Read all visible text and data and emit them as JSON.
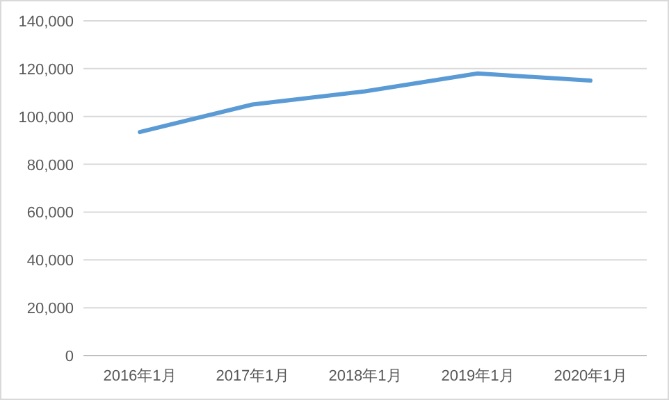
{
  "chart_data": {
    "type": "line",
    "categories": [
      "2016年1月",
      "2017年1月",
      "2018年1月",
      "2019年1月",
      "2020年1月"
    ],
    "series": [
      {
        "color": "#5b9bd5",
        "values": [
          93500,
          105000,
          110500,
          118000,
          115000
        ]
      }
    ],
    "ylim": [
      0,
      140000
    ],
    "yticks": [
      0,
      {
        "value": 20000,
        "label": "20,000"
      },
      {
        "value": 40000,
        "label": "40,000"
      },
      {
        "value": 60000,
        "label": "60,000"
      },
      {
        "value": 80000,
        "label": "80,000"
      },
      {
        "value": 100000,
        "label": "100,000"
      },
      {
        "value": 120000,
        "label": "120,000"
      },
      {
        "value": 140000,
        "label": "140,000"
      }
    ],
    "grid": "y"
  }
}
